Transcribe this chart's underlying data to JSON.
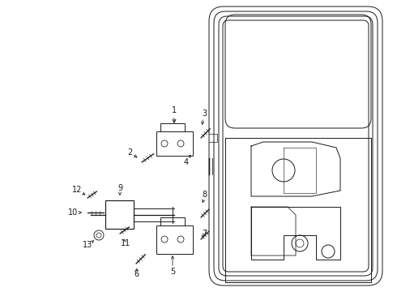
{
  "bg_color": "#ffffff",
  "line_color": "#1a1a1a",
  "figsize": [
    4.9,
    3.6
  ],
  "dpi": 100,
  "label_fs": 7.0
}
